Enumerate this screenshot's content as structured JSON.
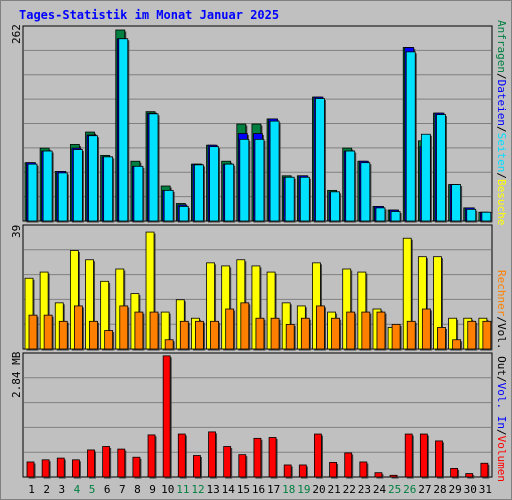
{
  "title": "Tages-Statistik im Monat Januar 2025",
  "colors": {
    "hits": "#008040",
    "files": "#0000ff",
    "pages": "#00e0ff",
    "visits": "#ffff00",
    "sites": "#ff8000",
    "kbytes": "#ff0000",
    "weekend": "#008040",
    "weekday": "#000000"
  },
  "right_labels": {
    "top": [
      {
        "text": "Anfragen",
        "color": "#008040"
      },
      {
        "text": "/",
        "color": "#000000"
      },
      {
        "text": "Dateien",
        "color": "#0000ff"
      },
      {
        "text": "/",
        "color": "#000000"
      },
      {
        "text": "Seiten",
        "color": "#00e0ff"
      },
      {
        "text": "/",
        "color": "#000000"
      },
      {
        "text": "Besuche",
        "color": "#ffff00"
      }
    ],
    "mid": [
      {
        "text": "Rechner",
        "color": "#ff8000"
      },
      {
        "text": "/",
        "color": "#000000"
      },
      {
        "text": "Vol. Out",
        "color": "#000000"
      },
      {
        "text": "/",
        "color": "#000000"
      },
      {
        "text": "Vol. In",
        "color": "#0000ff"
      },
      {
        "text": "/",
        "color": "#000000"
      },
      {
        "text": "Volumen",
        "color": "#ff0000"
      }
    ]
  },
  "chart_data": [
    {
      "type": "bar",
      "panel": "top",
      "y_max_label": "262",
      "ylim": [
        0,
        262
      ],
      "x": [
        1,
        2,
        3,
        4,
        5,
        6,
        7,
        8,
        9,
        10,
        11,
        12,
        13,
        14,
        15,
        16,
        17,
        18,
        19,
        20,
        21,
        22,
        23,
        24,
        25,
        26,
        27,
        28,
        29,
        30,
        31
      ],
      "weekend_days": [
        4,
        5,
        11,
        12,
        18,
        19,
        25,
        26
      ],
      "series": [
        {
          "name": "Anfragen",
          "values": [
            80,
            100,
            68,
            105,
            122,
            90,
            262,
            82,
            150,
            48,
            24,
            78,
            104,
            82,
            133,
            133,
            140,
            62,
            62,
            170,
            42,
            100,
            82,
            20,
            15,
            238,
            110,
            148,
            50,
            18,
            12
          ]
        },
        {
          "name": "Dateien",
          "values": [
            80,
            96,
            68,
            100,
            118,
            88,
            250,
            75,
            148,
            42,
            22,
            78,
            104,
            78,
            120,
            120,
            140,
            60,
            62,
            170,
            40,
            96,
            82,
            20,
            15,
            238,
            102,
            148,
            50,
            18,
            12
          ]
        },
        {
          "name": "Seiten",
          "values": [
            78,
            96,
            66,
            98,
            117,
            88,
            250,
            75,
            147,
            42,
            20,
            77,
            102,
            78,
            112,
            112,
            137,
            60,
            60,
            168,
            40,
            96,
            80,
            18,
            13,
            232,
            119,
            146,
            50,
            16,
            12
          ]
        }
      ]
    },
    {
      "type": "bar",
      "panel": "middle",
      "y_max_label": "39",
      "ylim": [
        0,
        39
      ],
      "x": [
        1,
        2,
        3,
        4,
        5,
        6,
        7,
        8,
        9,
        10,
        11,
        12,
        13,
        14,
        15,
        16,
        17,
        18,
        19,
        20,
        21,
        22,
        23,
        24,
        25,
        26,
        27,
        28,
        29,
        30,
        31
      ],
      "series": [
        {
          "name": "Besuche",
          "values": [
            23,
            25,
            15,
            32,
            29,
            22,
            26,
            18,
            38,
            12,
            16,
            10,
            28,
            27,
            29,
            27,
            25,
            15,
            14,
            28,
            12,
            26,
            25,
            13,
            7,
            36,
            30,
            30,
            10,
            10,
            10
          ]
        },
        {
          "name": "Rechner",
          "values": [
            11,
            11,
            9,
            14,
            9,
            6,
            14,
            12,
            12,
            3,
            9,
            9,
            9,
            13,
            15,
            10,
            10,
            8,
            10,
            14,
            10,
            12,
            12,
            12,
            8,
            9,
            13,
            7,
            3,
            9,
            9
          ]
        }
      ]
    },
    {
      "type": "bar",
      "panel": "bottom",
      "y_max_label": "2.84 MB",
      "ylim": [
        0,
        2.84
      ],
      "x": [
        1,
        2,
        3,
        4,
        5,
        6,
        7,
        8,
        9,
        10,
        11,
        12,
        13,
        14,
        15,
        16,
        17,
        18,
        19,
        20,
        21,
        22,
        23,
        24,
        25,
        26,
        27,
        28,
        29,
        30,
        31
      ],
      "series": [
        {
          "name": "Volumen",
          "values": [
            0.35,
            0.4,
            0.44,
            0.4,
            0.63,
            0.71,
            0.65,
            0.46,
            0.98,
            2.82,
            1.0,
            0.5,
            1.05,
            0.71,
            0.52,
            0.9,
            0.92,
            0.28,
            0.28,
            1.0,
            0.34,
            0.56,
            0.35,
            0.1,
            0.04,
            1.0,
            1.0,
            0.84,
            0.2,
            0.08,
            0.32
          ]
        }
      ]
    }
  ]
}
